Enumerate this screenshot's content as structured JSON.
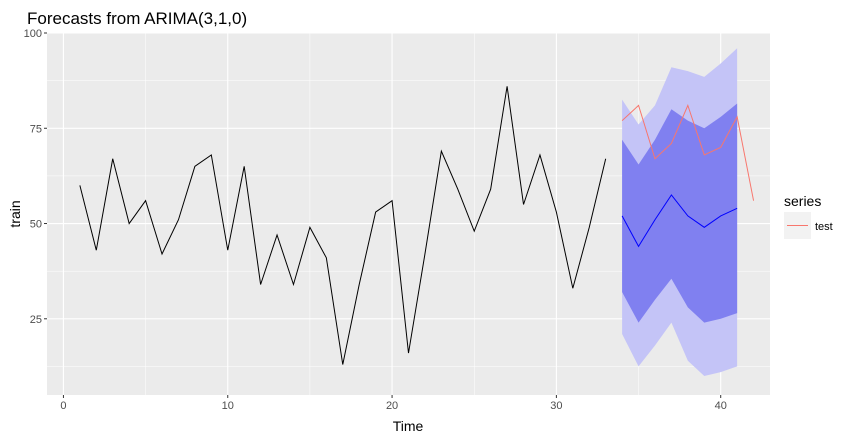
{
  "chart_data": {
    "type": "line",
    "title": "Forecasts from ARIMA(3,1,0)",
    "xlabel": "Time",
    "ylabel": "train",
    "xlim": [
      -1,
      43
    ],
    "ylim": [
      5,
      100
    ],
    "xticks": [
      0,
      10,
      20,
      30,
      40
    ],
    "yticks": [
      25,
      50,
      75,
      100
    ],
    "grid": true,
    "legend": {
      "title": "series",
      "position": "right",
      "entries": [
        "test"
      ]
    },
    "colors": {
      "panel": "#ebebeb",
      "grid": "#ffffff",
      "history": "#000000",
      "forecast": "#0000ff",
      "pi80": "#8080f0",
      "pi95": "#c4c4f7",
      "test": "#f8766d",
      "axis_tick_text": "#4d4d4d"
    },
    "history": {
      "x": [
        1,
        2,
        3,
        4,
        5,
        6,
        7,
        8,
        9,
        10,
        11,
        12,
        13,
        14,
        15,
        16,
        17,
        18,
        19,
        20,
        21,
        22,
        23,
        24,
        25,
        26,
        27,
        28,
        29,
        30,
        31,
        32,
        33
      ],
      "y": [
        60,
        43,
        67,
        50,
        56,
        42,
        51,
        65,
        68,
        43,
        65,
        34,
        47,
        34,
        49,
        41,
        13,
        34,
        53,
        56,
        16,
        42,
        69,
        59,
        48,
        59,
        86,
        55,
        68,
        53,
        33,
        49,
        67
      ]
    },
    "forecast": {
      "x": [
        34,
        35,
        36,
        37,
        38,
        39,
        40,
        41
      ],
      "mean": [
        52,
        44,
        51,
        57.5,
        52,
        49,
        52,
        54
      ],
      "lo80": [
        32,
        24,
        30,
        35.5,
        28,
        24,
        25,
        26.5
      ],
      "hi80": [
        72,
        65.5,
        72,
        80,
        77,
        75,
        78,
        81.5
      ],
      "lo95": [
        21,
        12.5,
        18,
        24,
        14,
        10,
        11,
        12.5
      ],
      "hi95": [
        82.5,
        76,
        81,
        91,
        90,
        88.5,
        92,
        96
      ]
    },
    "test": {
      "name": "test",
      "x": [
        34,
        35,
        36,
        37,
        38,
        39,
        40,
        41,
        42
      ],
      "y": [
        77,
        81,
        67,
        71,
        81,
        68,
        70,
        78,
        56
      ]
    }
  }
}
